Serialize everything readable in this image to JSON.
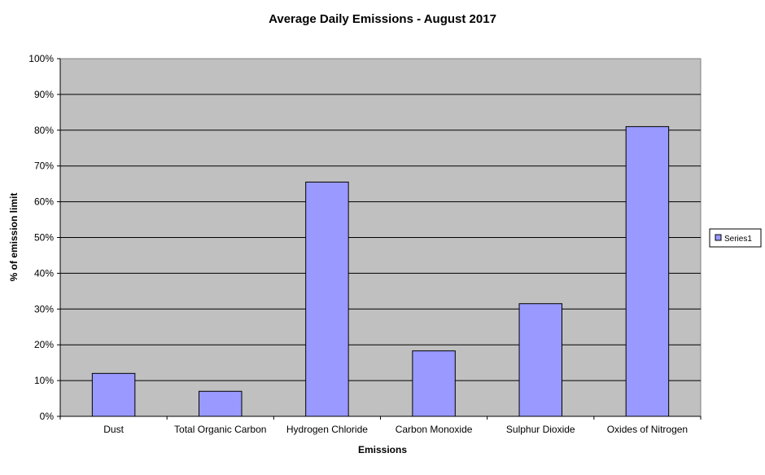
{
  "chart_data": {
    "type": "bar",
    "title": "Average Daily Emissions - August  2017",
    "xlabel": "Emissions",
    "ylabel": "% of emission limit",
    "categories": [
      "Dust",
      "Total Organic Carbon",
      "Hydrogen Chloride",
      "Carbon Monoxide",
      "Sulphur Dioxide",
      "Oxides of Nitrogen"
    ],
    "series": [
      {
        "name": "Series1",
        "values": [
          12,
          7,
          65.5,
          18.3,
          31.5,
          81
        ]
      }
    ],
    "ylim": [
      0,
      100
    ],
    "yticks": [
      "0%",
      "10%",
      "20%",
      "30%",
      "40%",
      "50%",
      "60%",
      "70%",
      "80%",
      "90%",
      "100%"
    ],
    "grid": true,
    "legend": "right",
    "colors": {
      "bar_fill": "#9999ff",
      "bar_stroke": "#000000",
      "plot_background": "#c0c0c0",
      "gridline": "#000000"
    }
  }
}
